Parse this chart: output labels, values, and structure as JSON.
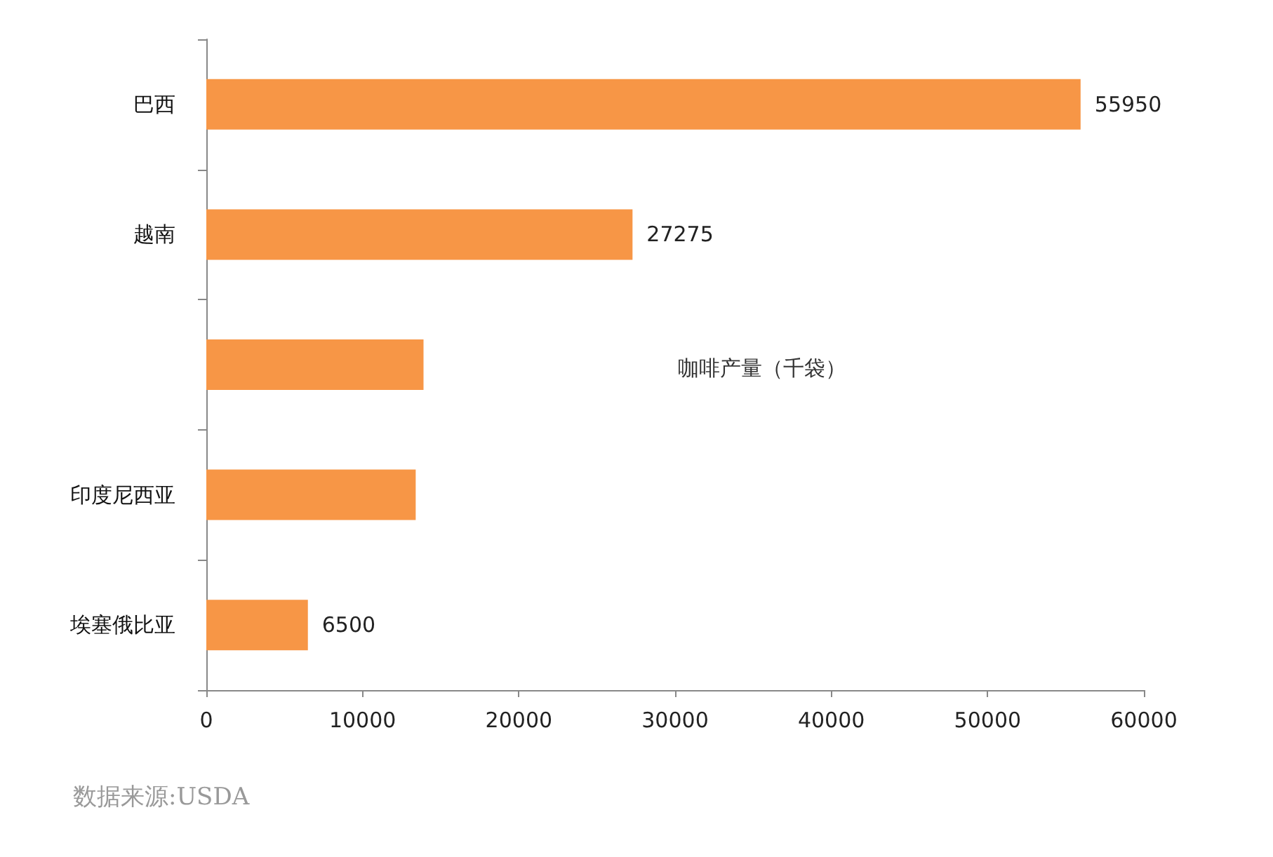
{
  "chart_data": {
    "type": "bar",
    "orientation": "horizontal",
    "title": "咖啡产量（千袋）",
    "categories": [
      "巴西",
      "越南",
      null,
      "印度尼西亚",
      "埃塞俄比亚"
    ],
    "values": [
      55950,
      27275,
      13900,
      13400,
      6500
    ],
    "value_labels": [
      "55950",
      "27275",
      null,
      null,
      "6500"
    ],
    "color": "#f79646",
    "xlim": [
      0,
      60000
    ],
    "xticks": [
      0,
      10000,
      20000,
      30000,
      40000,
      50000,
      60000
    ],
    "grid": false,
    "annotations": [
      "数据来源:USDA"
    ]
  }
}
